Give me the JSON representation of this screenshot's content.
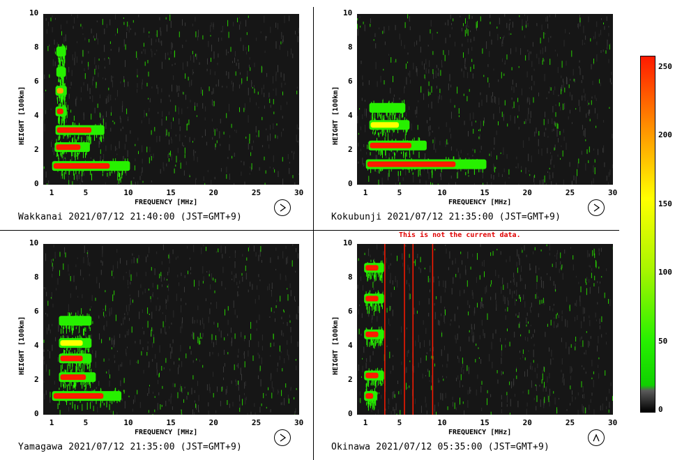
{
  "warning": "This is not the current data.",
  "colorbar": {
    "ticks": [
      "250",
      "200",
      "150",
      "100",
      "50",
      "0"
    ],
    "tick_values": [
      250,
      200,
      150,
      100,
      50,
      0
    ],
    "colors": {
      "low": "#161616",
      "mid": "#27f000",
      "high": "#ffff00",
      "max": "#ff1a00"
    }
  },
  "chart_data": [
    {
      "type": "heatmap",
      "station": "Wakkanai 2021/07/12 21:40:00 (JST=GMT+9)",
      "xlabel": "FREQUENCY [MHz]",
      "ylabel": "HEIGHT [100km]",
      "x_ticks": [
        "1",
        "5",
        "10",
        "15",
        "20",
        "25",
        "30"
      ],
      "y_ticks": [
        "0",
        "2",
        "4",
        "6",
        "8",
        "10"
      ],
      "xlim": [
        0,
        30
      ],
      "ylim": [
        0,
        10
      ],
      "clock_icon": "clock-icon",
      "traces": [
        {
          "height": 1.1,
          "f_start": 1.2,
          "f_end": 10.0,
          "intensity": 240
        },
        {
          "height": 2.2,
          "f_start": 1.5,
          "f_end": 5.3,
          "intensity": 230
        },
        {
          "height": 3.2,
          "f_start": 1.6,
          "f_end": 7.0,
          "intensity": 220
        },
        {
          "height": 4.3,
          "f_start": 1.6,
          "f_end": 2.6,
          "intensity": 220
        },
        {
          "height": 5.5,
          "f_start": 1.6,
          "f_end": 2.6,
          "intensity": 200
        },
        {
          "height": 6.6,
          "f_start": 1.7,
          "f_end": 2.5,
          "intensity": 120
        },
        {
          "height": 7.8,
          "f_start": 1.7,
          "f_end": 2.5,
          "intensity": 110
        }
      ]
    },
    {
      "type": "heatmap",
      "station": "Kokubunji 2021/07/12 21:35:00 (JST=GMT+9)",
      "xlabel": "FREQUENCY [MHz]",
      "ylabel": "HEIGHT [100km]",
      "x_ticks": [
        "1",
        "5",
        "10",
        "15",
        "20",
        "25",
        "30"
      ],
      "y_ticks": [
        "0",
        "2",
        "4",
        "6",
        "8",
        "10"
      ],
      "xlim": [
        0,
        30
      ],
      "ylim": [
        0,
        10
      ],
      "clock_icon": "clock-icon",
      "traces": [
        {
          "height": 1.2,
          "f_start": 1.2,
          "f_end": 15.0,
          "intensity": 240
        },
        {
          "height": 2.3,
          "f_start": 1.5,
          "f_end": 8.0,
          "intensity": 220
        },
        {
          "height": 3.5,
          "f_start": 1.6,
          "f_end": 6.0,
          "intensity": 160
        },
        {
          "height": 4.5,
          "f_start": 1.6,
          "f_end": 5.5,
          "intensity": 110
        }
      ]
    },
    {
      "type": "heatmap",
      "station": "Yamagawa 2021/07/12 21:35:00 (JST=GMT+9)",
      "xlabel": "FREQUENCY [MHz]",
      "ylabel": "HEIGHT [100km]",
      "x_ticks": [
        "1",
        "5",
        "10",
        "15",
        "20",
        "25",
        "30"
      ],
      "y_ticks": [
        "0",
        "2",
        "4",
        "6",
        "8",
        "10"
      ],
      "xlim": [
        0,
        30
      ],
      "ylim": [
        0,
        10
      ],
      "clock_icon": "clock-icon",
      "traces": [
        {
          "height": 1.1,
          "f_start": 1.2,
          "f_end": 9.0,
          "intensity": 240
        },
        {
          "height": 2.2,
          "f_start": 2.0,
          "f_end": 6.0,
          "intensity": 230
        },
        {
          "height": 3.3,
          "f_start": 2.0,
          "f_end": 5.5,
          "intensity": 220
        },
        {
          "height": 4.2,
          "f_start": 2.0,
          "f_end": 5.5,
          "intensity": 130
        },
        {
          "height": 5.5,
          "f_start": 2.0,
          "f_end": 5.5,
          "intensity": 110
        }
      ]
    },
    {
      "type": "heatmap",
      "station": "Okinawa 2021/07/12 05:35:00 (JST=GMT+9)",
      "xlabel": "FREQUENCY [MHz]",
      "ylabel": "HEIGHT [100km]",
      "x_ticks": [
        "1",
        "5",
        "10",
        "15",
        "20",
        "25",
        "30"
      ],
      "y_ticks": [
        "0",
        "2",
        "4",
        "6",
        "8",
        "10"
      ],
      "xlim": [
        0,
        30
      ],
      "ylim": [
        0,
        10
      ],
      "clock_icon": "clock-icon",
      "traces": [
        {
          "height": 1.1,
          "f_start": 1.0,
          "f_end": 2.2,
          "intensity": 240
        },
        {
          "height": 2.3,
          "f_start": 1.0,
          "f_end": 3.0,
          "intensity": 240
        },
        {
          "height": 4.7,
          "f_start": 1.0,
          "f_end": 3.0,
          "intensity": 230
        },
        {
          "height": 6.8,
          "f_start": 1.0,
          "f_end": 3.0,
          "intensity": 220
        },
        {
          "height": 8.6,
          "f_start": 1.0,
          "f_end": 3.0,
          "intensity": 220
        }
      ],
      "spikes": [
        {
          "freq": 3.2,
          "intensity": 240
        },
        {
          "freq": 5.5,
          "intensity": 240
        },
        {
          "freq": 6.5,
          "intensity": 240
        },
        {
          "freq": 8.8,
          "intensity": 240
        }
      ]
    }
  ]
}
